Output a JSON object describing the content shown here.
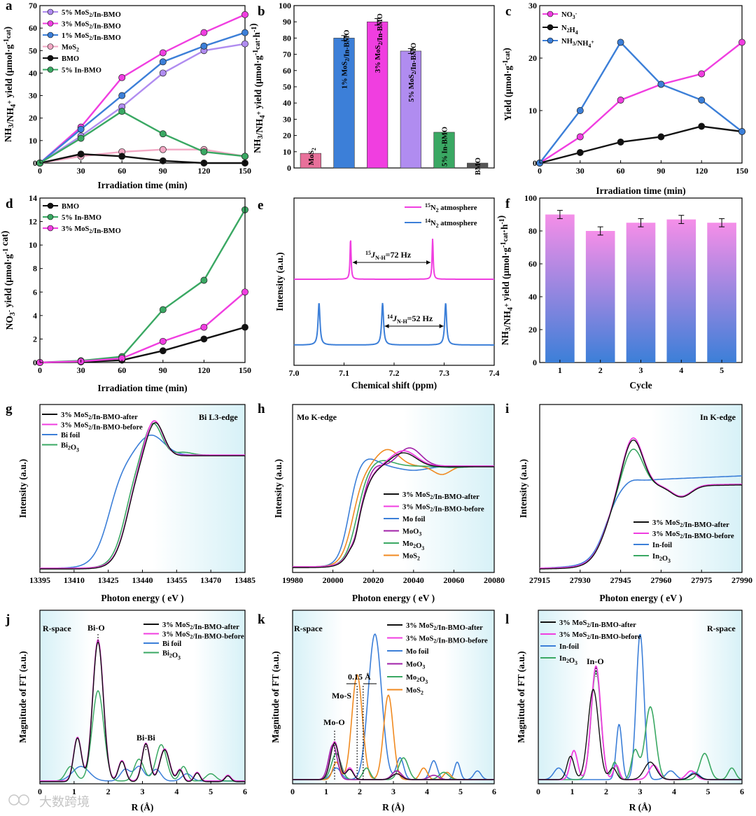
{
  "watermark": "大数跨境",
  "chart_data": [
    {
      "id": "a",
      "panel_label": "a",
      "type": "line",
      "xlabel": "Irradiation time (min)",
      "ylabel": "NH3/NH4+ yield (μmol·g-1cat)",
      "xlim": [
        0,
        150
      ],
      "ylim": [
        0,
        70
      ],
      "xticks": [
        0,
        30,
        60,
        90,
        120,
        150
      ],
      "yticks": [
        0,
        10,
        20,
        30,
        40,
        50,
        60,
        70
      ],
      "x": [
        0,
        30,
        60,
        90,
        120,
        150
      ],
      "legend_position": "top-left",
      "series": [
        {
          "name": "5% MoS2/In-BMO",
          "color": "#b08cf0",
          "values": [
            0,
            12,
            25,
            40,
            50,
            53
          ]
        },
        {
          "name": "3% MoS2/In-BMO",
          "color": "#f03ee0",
          "values": [
            0,
            16,
            38,
            49,
            58,
            66
          ]
        },
        {
          "name": "1% MoS2/In-BMO",
          "color": "#3c7fd8",
          "values": [
            0,
            15,
            30,
            45,
            52,
            58
          ]
        },
        {
          "name": "MoS2",
          "color": "#f2a8c4",
          "values": [
            0,
            3,
            5,
            6,
            6,
            3
          ]
        },
        {
          "name": "BMO",
          "color": "#111111",
          "values": [
            0,
            4,
            3,
            1,
            0,
            0
          ]
        },
        {
          "name": "5% In-BMO",
          "color": "#3aa863",
          "values": [
            0,
            11,
            23,
            13,
            5,
            3
          ]
        }
      ]
    },
    {
      "id": "b",
      "panel_label": "b",
      "type": "bar",
      "ylabel": "NH3/NH4+ yield (μmol·g-1cat·h-1)",
      "ylim": [
        0,
        100
      ],
      "yticks": [
        0,
        10,
        20,
        30,
        40,
        50,
        60,
        70,
        80,
        90,
        100
      ],
      "categories": [
        "MoS2",
        "1% MoS2/In-BMO",
        "3% MoS2/In-BMO",
        "5% MoS2/In-BMO",
        "5% In-BMO",
        "BMO"
      ],
      "values": [
        9,
        80,
        90,
        72,
        22,
        3
      ],
      "errors": [
        0,
        1.5,
        2,
        1.5,
        0,
        0
      ],
      "colors": [
        "#e8709a",
        "#3c7fd8",
        "#f03ee0",
        "#b08cf0",
        "#3aa863",
        "#555555"
      ]
    },
    {
      "id": "c",
      "panel_label": "c",
      "type": "line",
      "xlabel": "Irradiation time (min)",
      "ylabel": "Yield (μmol·g-1cat)",
      "xlim": [
        0,
        150
      ],
      "ylim": [
        0,
        30
      ],
      "xticks": [
        0,
        30,
        60,
        90,
        120,
        150
      ],
      "yticks": [
        0,
        10,
        20,
        30
      ],
      "x": [
        0,
        30,
        60,
        90,
        120,
        150
      ],
      "legend_position": "top-left",
      "series": [
        {
          "name": "NO3-",
          "color": "#f03ee0",
          "values": [
            0,
            5,
            12,
            15,
            17,
            23
          ]
        },
        {
          "name": "N2H4",
          "color": "#111111",
          "values": [
            0,
            2,
            4,
            5,
            7,
            6
          ]
        },
        {
          "name": "NH3/NH4+",
          "color": "#3c7fd8",
          "values": [
            0,
            10,
            23,
            15,
            12,
            6
          ]
        }
      ]
    },
    {
      "id": "d",
      "panel_label": "d",
      "type": "line",
      "xlabel": "Irradiation time (min)",
      "ylabel": "NO3- yield (μmol·g-1cat)",
      "xlim": [
        0,
        150
      ],
      "ylim": [
        0,
        14
      ],
      "xticks": [
        0,
        30,
        60,
        90,
        120,
        150
      ],
      "yticks": [
        0,
        2,
        4,
        6,
        8,
        10,
        12,
        14
      ],
      "x": [
        0,
        30,
        60,
        90,
        120,
        150
      ],
      "legend_position": "top-left",
      "series": [
        {
          "name": "BMO",
          "color": "#111111",
          "values": [
            0,
            0.05,
            0.2,
            1,
            2,
            3
          ]
        },
        {
          "name": "5% In-BMO",
          "color": "#3aa863",
          "values": [
            0,
            0.15,
            0.5,
            4.5,
            7,
            13
          ]
        },
        {
          "name": "3% MoS2/In-BMO",
          "color": "#f03ee0",
          "values": [
            0,
            0.1,
            0.35,
            1.8,
            3,
            6
          ]
        }
      ]
    },
    {
      "id": "e",
      "panel_label": "e",
      "type": "line",
      "xlabel": "Chemical shift (ppm)",
      "ylabel": "Intensity (a.u.)",
      "xlim": [
        7.0,
        7.4
      ],
      "xticks": [
        7.0,
        7.1,
        7.2,
        7.3,
        7.4
      ],
      "legend_position": "top-right",
      "series": [
        {
          "name": "15N2 atmosphere",
          "color": "#f03ee0",
          "peaks_ppm": [
            7.113,
            7.277
          ]
        },
        {
          "name": "14N2 atmosphere",
          "color": "#3c7fd8",
          "peaks_ppm": [
            7.05,
            7.177,
            7.303
          ]
        }
      ],
      "annotations": [
        "15JN-H=72 Hz",
        "14JN-H=52 Hz"
      ]
    },
    {
      "id": "f",
      "panel_label": "f",
      "type": "bar",
      "xlabel": "Cycle",
      "ylabel": "NH3/NH4+ yield (μmol·g-1cat·h-1)",
      "ylim": [
        0,
        100
      ],
      "yticks": [
        0,
        20,
        40,
        60,
        80,
        100
      ],
      "categories": [
        "1",
        "2",
        "3",
        "4",
        "5"
      ],
      "values": [
        90,
        80,
        85,
        87,
        85
      ],
      "errors": [
        2.5,
        2.5,
        2.5,
        2.5,
        2.5
      ],
      "colors": [
        "#f58ee8",
        "#3c7fd8"
      ]
    },
    {
      "id": "g",
      "panel_label": "g",
      "type": "line",
      "title": "Bi L3-edge",
      "xlabel": "Photon energy ( eV )",
      "ylabel": "Intensity (a.u.)",
      "xlim": [
        13395,
        13485
      ],
      "xticks": [
        13395,
        13410,
        13425,
        13440,
        13455,
        13470,
        13485
      ],
      "legend_position": "top-left",
      "series": [
        {
          "name": "3% MoS2/In-BMO-after",
          "color": "#111111"
        },
        {
          "name": "3% MoS2/In-BMO-before",
          "color": "#f03ee0"
        },
        {
          "name": "Bi foil",
          "color": "#3c7fd8"
        },
        {
          "name": "Bi2O3",
          "color": "#3aa863"
        }
      ]
    },
    {
      "id": "h",
      "panel_label": "h",
      "type": "line",
      "title": "Mo K-edge",
      "xlabel": "Photon energy ( eV )",
      "ylabel": "Intensity (a.u.)",
      "xlim": [
        19980,
        20080
      ],
      "xticks": [
        19980,
        20000,
        20020,
        20040,
        20060,
        20080
      ],
      "legend_position": "bottom-right",
      "series": [
        {
          "name": "3% MoS2/In-BMO-after",
          "color": "#111111"
        },
        {
          "name": "3% MoS2/In-BMO-before",
          "color": "#f03ee0"
        },
        {
          "name": "Mo foil",
          "color": "#3c7fd8"
        },
        {
          "name": "MoO3",
          "color": "#a020a8"
        },
        {
          "name": "Mo2O3",
          "color": "#3aa863"
        },
        {
          "name": "MoS2",
          "color": "#f08a20"
        }
      ]
    },
    {
      "id": "i",
      "panel_label": "i",
      "type": "line",
      "title": "In K-edge",
      "xlabel": "Photon energy ( eV )",
      "ylabel": "Intensity (a.u.)",
      "xlim": [
        27915,
        27990
      ],
      "xticks": [
        27915,
        27930,
        27945,
        27960,
        27975,
        27990
      ],
      "legend_position": "bottom-right",
      "series": [
        {
          "name": "3% MoS2/In-BMO-after",
          "color": "#111111"
        },
        {
          "name": "3% MoS2/In-BMO-before",
          "color": "#f03ee0"
        },
        {
          "name": "In-foil",
          "color": "#3c7fd8"
        },
        {
          "name": "In2O3",
          "color": "#3aa863"
        }
      ]
    },
    {
      "id": "j",
      "panel_label": "j",
      "type": "line",
      "title": "R-space",
      "xlabel": "R (Å)",
      "ylabel": "Magnitude of FT (a.u.)",
      "xlim": [
        0,
        6
      ],
      "xticks": [
        0,
        1,
        2,
        3,
        4,
        5,
        6
      ],
      "legend_position": "top-right",
      "series": [
        {
          "name": "3% MoS2/In-BMO-after",
          "color": "#111111"
        },
        {
          "name": "3% MoS2/In-BMO-before",
          "color": "#f03ee0"
        },
        {
          "name": "Bi foil",
          "color": "#3c7fd8"
        },
        {
          "name": "Bi2O3",
          "color": "#3aa863"
        }
      ],
      "annotations": [
        "Bi-O",
        "Bi-Bi"
      ]
    },
    {
      "id": "k",
      "panel_label": "k",
      "type": "line",
      "title": "R-space",
      "xlabel": "R (Å)",
      "ylabel": "Magnitude of FT (a.u.)",
      "xlim": [
        0,
        6
      ],
      "xticks": [
        0,
        1,
        2,
        3,
        4,
        5,
        6
      ],
      "legend_position": "top-right",
      "series": [
        {
          "name": "3% MoS2/In-BMO-after",
          "color": "#111111"
        },
        {
          "name": "3% MoS2/In-BMO-before",
          "color": "#f03ee0"
        },
        {
          "name": "Mo foil",
          "color": "#3c7fd8"
        },
        {
          "name": "MoO3",
          "color": "#a020a8"
        },
        {
          "name": "Mo2O3",
          "color": "#3aa863"
        },
        {
          "name": "MoS2",
          "color": "#f08a20"
        }
      ],
      "annotations": [
        "Mo-O",
        "Mo-S",
        "0.15 Å"
      ]
    },
    {
      "id": "l",
      "panel_label": "l",
      "type": "line",
      "title": "R-space",
      "xlabel": "R (Å)",
      "ylabel": "Magnitude of FT (a.u.)",
      "xlim": [
        0,
        6
      ],
      "xticks": [
        0,
        1,
        2,
        3,
        4,
        5,
        6
      ],
      "legend_position": "top-left",
      "series": [
        {
          "name": "3% MoS2/In-BMO-after",
          "color": "#111111"
        },
        {
          "name": "3% MoS2/In-BMO-before",
          "color": "#f03ee0"
        },
        {
          "name": "In-foil",
          "color": "#3c7fd8"
        },
        {
          "name": "In2O3",
          "color": "#3aa863"
        }
      ],
      "annotations": [
        "In-O"
      ]
    }
  ]
}
